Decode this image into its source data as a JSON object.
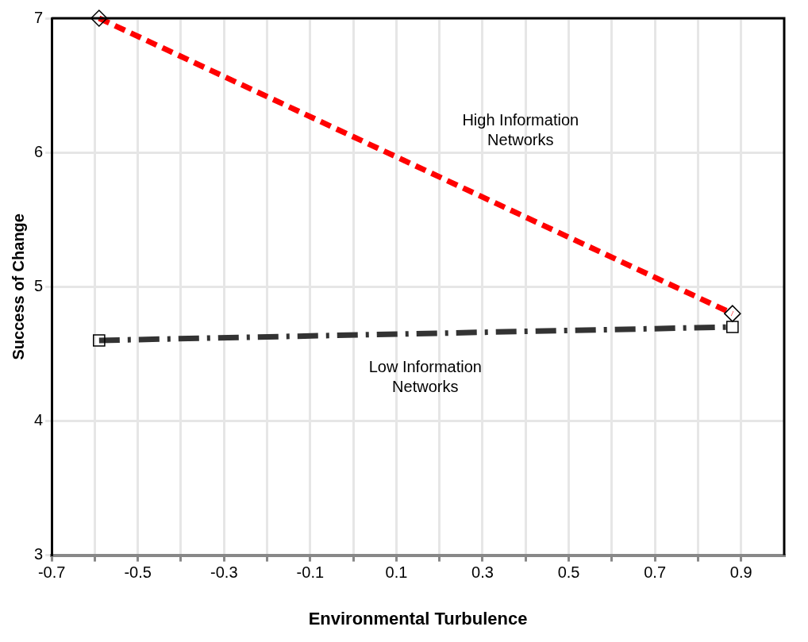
{
  "chart_data": {
    "type": "line",
    "xlabel": "Environmental Turbulence",
    "ylabel": "Success of Change",
    "series": [
      {
        "values": [
          7.0,
          4.8
        ],
        "color": "#ff0000",
        "marker": "diamond",
        "line_style": "dashed"
      },
      {
        "values": [
          4.6,
          4.7
        ],
        "color": "#333333",
        "marker": "square",
        "line_style": "dashed"
      }
    ],
    "x": [
      -0.59,
      0.88
    ],
    "xlim": [
      -0.7,
      1.0
    ],
    "xticks": [
      -0.7,
      {
        "value": -0.6,
        "label": null
      },
      -0.5,
      {
        "value": -0.4,
        "label": null
      },
      -0.3,
      {
        "value": -0.2,
        "label": null
      },
      -0.1,
      {
        "value": 0,
        "label": null
      },
      0.1,
      {
        "value": 0.2,
        "label": null
      },
      0.3,
      {
        "value": 0.4,
        "label": null
      },
      0.5,
      {
        "value": 0.6,
        "label": null
      },
      0.7,
      {
        "value": 0.8,
        "label": null
      },
      0.9
    ],
    "ylim": [
      3,
      7
    ],
    "yticks": [
      3,
      4,
      5,
      6,
      7
    ],
    "annotations": [
      "High Information Networks",
      "Low Information Networks"
    ],
    "grid": true,
    "legend": false
  }
}
